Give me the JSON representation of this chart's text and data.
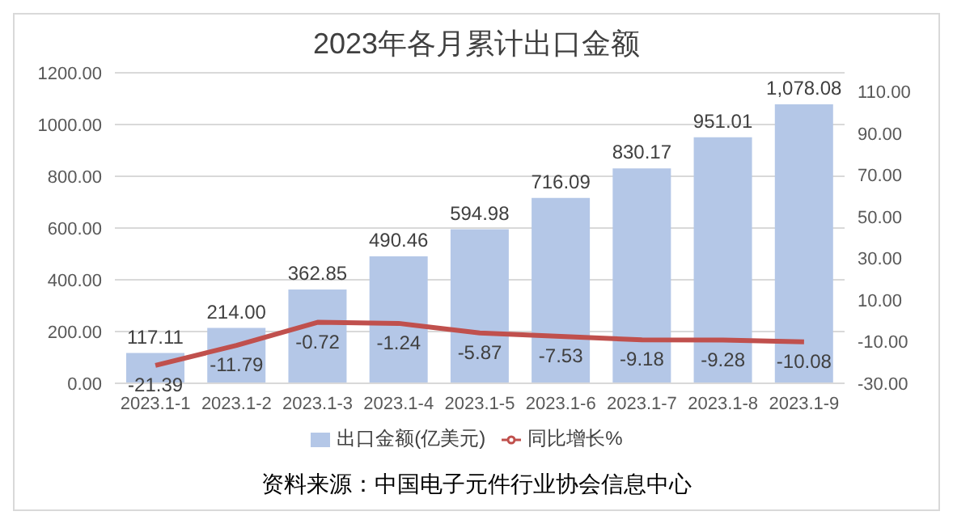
{
  "chart_data": {
    "type": "bar",
    "title": "2023年各月累计出口金额",
    "categories": [
      "2023.1-1",
      "2023.1-2",
      "2023.1-3",
      "2023.1-4",
      "2023.1-5",
      "2023.1-6",
      "2023.1-7",
      "2023.1-8",
      "2023.1-9"
    ],
    "series": [
      {
        "name": "出口金额(亿美元)",
        "color": "#b4c7e7",
        "values": [
          117.11,
          214.0,
          362.85,
          490.46,
          594.98,
          716.09,
          830.17,
          951.01,
          1078.08
        ],
        "value_labels": [
          "117.11",
          "214.00",
          "362.85",
          "490.46",
          "594.98",
          "716.09",
          "830.17",
          "951.01",
          "1,078.08"
        ]
      },
      {
        "name": "同比增长%",
        "type": "line",
        "axis": "y2",
        "color": "#c0504d",
        "values": [
          -21.39,
          -11.79,
          -0.72,
          -1.24,
          -5.87,
          -7.53,
          -9.18,
          -9.28,
          -10.08
        ],
        "value_labels": [
          "-21.39",
          "-11.79",
          "-0.72",
          "-1.24",
          "-5.87",
          "-7.53",
          "-9.18",
          "-9.28",
          "-10.08"
        ]
      }
    ],
    "ylim": [
      0,
      1200
    ],
    "yticks": [
      {
        "value": 0,
        "label": "0.00"
      },
      {
        "value": 200,
        "label": "200.00"
      },
      {
        "value": 400,
        "label": "400.00"
      },
      {
        "value": 600,
        "label": "600.00"
      },
      {
        "value": 800,
        "label": "800.00"
      },
      {
        "value": 1000,
        "label": "1000.00"
      },
      {
        "value": 1200,
        "label": "1200.00"
      }
    ],
    "y2lim": [
      -30,
      119
    ],
    "y2ticks": [
      {
        "value": -30,
        "label": "-30.00"
      },
      {
        "value": -10,
        "label": "-10.00"
      },
      {
        "value": 10,
        "label": "10.00"
      },
      {
        "value": 30,
        "label": "30.00"
      },
      {
        "value": 50,
        "label": "50.00"
      },
      {
        "value": 70,
        "label": "70.00"
      },
      {
        "value": 90,
        "label": "90.00"
      },
      {
        "value": 110,
        "label": "110.00"
      }
    ],
    "grid": "y",
    "legend": "bottom",
    "marker": "none",
    "line_style": "solid",
    "annotations": [
      "资料来源：中国电子元件行业协会信息中心"
    ]
  }
}
